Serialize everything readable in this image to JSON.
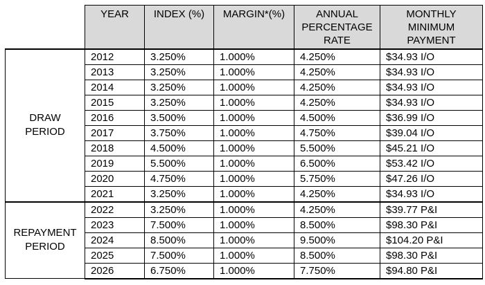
{
  "table": {
    "headers": [
      "YEAR",
      "INDEX (%)",
      "MARGIN*(%)",
      "ANNUAL\nPERCENTAGE\nRATE",
      "MONTHLY\nMINIMUM\nPAYMENT"
    ],
    "groups": [
      {
        "label": "DRAW\nPERIOD",
        "rows": [
          [
            "2012",
            "3.250%",
            "1.000%",
            "4.250%",
            "$34.93 I/O"
          ],
          [
            "2013",
            "3.250%",
            "1.000%",
            "4.250%",
            "$34.93 I/O"
          ],
          [
            "2014",
            "3.250%",
            "1.000%",
            "4.250%",
            "$34.93 I/O"
          ],
          [
            "2015",
            "3.250%",
            "1.000%",
            "4.250%",
            "$34.93 I/O"
          ],
          [
            "2016",
            "3.500%",
            "1.000%",
            "4.500%",
            "$36.99 I/O"
          ],
          [
            "2017",
            "3.750%",
            "1.000%",
            "4.750%",
            "$39.04 I/O"
          ],
          [
            "2018",
            "4.500%",
            "1.000%",
            "5.500%",
            "$45.21 I/O"
          ],
          [
            "2019",
            "5.500%",
            "1.000%",
            "6.500%",
            "$53.42 I/O"
          ],
          [
            "2020",
            "4.750%",
            "1.000%",
            "5.750%",
            "$47.26 I/O"
          ],
          [
            "2021",
            "3.250%",
            "1.000%",
            "4.250%",
            "$34.93 I/O"
          ]
        ]
      },
      {
        "label": "REPAYMENT\nPERIOD",
        "rows": [
          [
            "2022",
            "3.250%",
            "1.000%",
            "4.250%",
            "$39.77 P&I"
          ],
          [
            "2023",
            "7.500%",
            "1.000%",
            "8.500%",
            "$98.30 P&I"
          ],
          [
            "2024",
            "8.500%",
            "1.000%",
            "9.500%",
            "$104.20 P&I"
          ],
          [
            "2025",
            "7.500%",
            "1.000%",
            "8.500%",
            "$98.30 P&I"
          ],
          [
            "2026",
            "6.750%",
            "1.000%",
            "7.750%",
            "$94.80 P&I"
          ]
        ]
      }
    ]
  },
  "colors": {
    "header_bg": "#d9d9d9",
    "border": "#000000",
    "background": "#ffffff"
  },
  "chart_data": {
    "type": "table",
    "title": "",
    "columns": [
      "YEAR",
      "INDEX (%)",
      "MARGIN*(%)",
      "ANNUAL PERCENTAGE RATE",
      "MONTHLY MINIMUM PAYMENT"
    ],
    "row_groups": {
      "DRAW PERIOD": [
        "2012",
        "2013",
        "2014",
        "2015",
        "2016",
        "2017",
        "2018",
        "2019",
        "2020",
        "2021"
      ],
      "REPAYMENT PERIOD": [
        "2022",
        "2023",
        "2024",
        "2025",
        "2026"
      ]
    },
    "years": [
      2012,
      2013,
      2014,
      2015,
      2016,
      2017,
      2018,
      2019,
      2020,
      2021,
      2022,
      2023,
      2024,
      2025,
      2026
    ],
    "index_pct": [
      3.25,
      3.25,
      3.25,
      3.25,
      3.5,
      3.75,
      4.5,
      5.5,
      4.75,
      3.25,
      3.25,
      7.5,
      8.5,
      7.5,
      6.75
    ],
    "margin_pct": [
      1.0,
      1.0,
      1.0,
      1.0,
      1.0,
      1.0,
      1.0,
      1.0,
      1.0,
      1.0,
      1.0,
      1.0,
      1.0,
      1.0,
      1.0
    ],
    "apr_pct": [
      4.25,
      4.25,
      4.25,
      4.25,
      4.5,
      4.75,
      5.5,
      6.5,
      5.75,
      4.25,
      4.25,
      8.5,
      9.5,
      8.5,
      7.75
    ],
    "monthly_minimum_payment": [
      "$34.93 I/O",
      "$34.93 I/O",
      "$34.93 I/O",
      "$34.93 I/O",
      "$36.99 I/O",
      "$39.04 I/O",
      "$45.21 I/O",
      "$53.42 I/O",
      "$47.26 I/O",
      "$34.93 I/O",
      "$39.77 P&I",
      "$98.30 P&I",
      "$104.20 P&I",
      "$98.30 P&I",
      "$94.80 P&I"
    ]
  }
}
